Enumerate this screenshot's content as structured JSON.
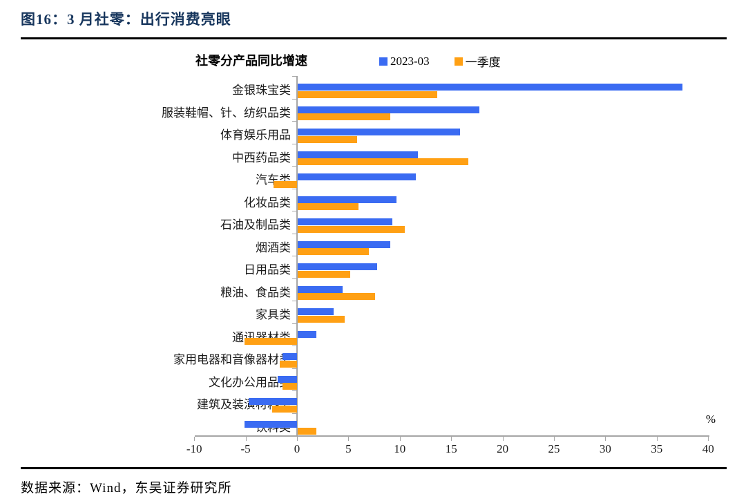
{
  "page": {
    "figure_label": "图16：3 月社零：出行消费亮眼",
    "source": "数据来源：Wind，东吴证券研究所"
  },
  "colors": {
    "series_blue": "#3A6BF2",
    "series_orange": "#FFA014",
    "figure_title": "#17365D",
    "axis": "#A6A6A6"
  },
  "chart_data": {
    "type": "bar",
    "orientation": "horizontal",
    "title": "社零分产品同比增速",
    "unit_label": "%",
    "xlim": [
      -10,
      40
    ],
    "x_ticks": [
      -10,
      -5,
      0,
      5,
      10,
      15,
      20,
      25,
      30,
      35,
      40
    ],
    "grid": false,
    "legend_position": "top",
    "categories": [
      "金银珠宝类",
      "服装鞋帽、针、纺织品类",
      "体育娱乐用品",
      "中西药品类",
      "汽车类",
      "化妆品类",
      "石油及制品类",
      "烟酒类",
      "日用品类",
      "粮油、食品类",
      "家具类",
      "通讯器材类",
      "家用电器和音像器材类",
      "文化办公用品类",
      "建筑及装潢材料类",
      "饮料类"
    ],
    "series": [
      {
        "name": "2023-03",
        "color": "#3A6BF2",
        "values": [
          37.4,
          17.7,
          15.8,
          11.7,
          11.5,
          9.6,
          9.2,
          9.0,
          7.7,
          4.4,
          3.5,
          1.8,
          -1.4,
          -1.9,
          -4.7,
          -5.1
        ]
      },
      {
        "name": "一季度",
        "color": "#FFA014",
        "values": [
          13.6,
          9.0,
          5.8,
          16.6,
          -2.3,
          5.9,
          10.4,
          6.9,
          5.1,
          7.5,
          4.6,
          -5.1,
          -1.7,
          -1.4,
          -2.4,
          1.8
        ]
      }
    ]
  }
}
